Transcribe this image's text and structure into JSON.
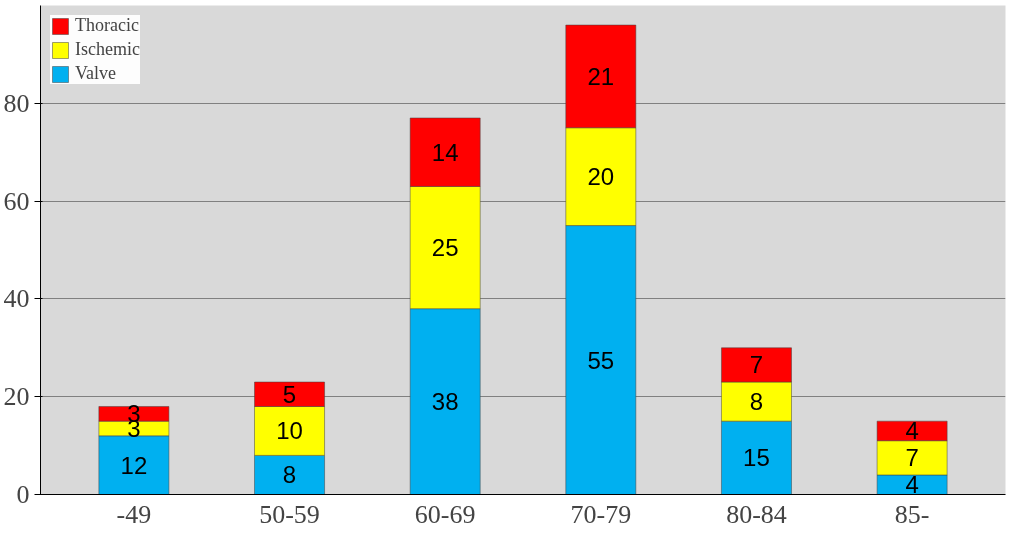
{
  "chart_data": {
    "type": "bar",
    "stacked": true,
    "categories": [
      "-49",
      "50-59",
      "60-69",
      "70-79",
      "80-84",
      "85-"
    ],
    "series": [
      {
        "name": "Valve",
        "color": "#00b0f0",
        "values": [
          12,
          8,
          38,
          55,
          15,
          4
        ]
      },
      {
        "name": "Ischemic",
        "color": "#ffff00",
        "values": [
          3,
          10,
          25,
          20,
          8,
          7
        ]
      },
      {
        "name": "Thoracic",
        "color": "#ff0000",
        "values": [
          3,
          5,
          14,
          21,
          7,
          4
        ]
      }
    ],
    "ylim": [
      0,
      100
    ],
    "yticks": [
      0,
      20,
      40,
      60,
      80
    ],
    "grid": "y",
    "legend": "top left",
    "data_labels": true
  }
}
